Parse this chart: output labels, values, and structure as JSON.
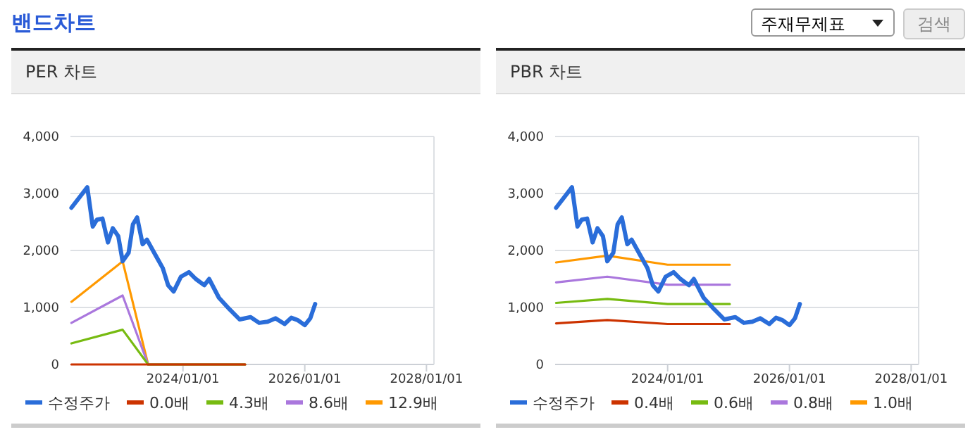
{
  "chart_data": [
    {
      "type": "line",
      "title": "PER 차트",
      "annotations": [
        "밴드차트",
        "주재무제표",
        "검색"
      ],
      "xlim": [
        "2022-02-25",
        "2028-02-15"
      ],
      "xticks": [
        {
          "value": "2024-01-01",
          "label": "2024/01/01"
        },
        {
          "value": "2026-01-01",
          "label": "2026/01/01"
        },
        {
          "value": "2028-01-01",
          "label": "2028/01/01"
        }
      ],
      "ylim": [
        0,
        4000
      ],
      "yticks": [
        0,
        {
          "value": 1000,
          "label": "1,000"
        },
        {
          "value": 2000,
          "label": "2,000"
        },
        {
          "value": 3000,
          "label": "3,000"
        },
        {
          "value": 4000,
          "label": "4,000"
        }
      ],
      "grid": "y",
      "legend": "bottom",
      "series": [
        {
          "name": "수정주가",
          "color": "#2a6dd9",
          "x": [
            "2022-03-03",
            "2022-06-06",
            "2022-07-09",
            "2022-08-03",
            "2022-09-05",
            "2022-10-08",
            "2022-11-06",
            "2022-12-09",
            "2023-01-04",
            "2023-02-09",
            "2023-03-07",
            "2023-04-01",
            "2023-05-04",
            "2023-05-30",
            "2023-07-20",
            "2023-09-02",
            "2023-10-04",
            "2023-11-06",
            "2023-12-20",
            "2024-02-06",
            "2024-03-18",
            "2024-05-08",
            "2024-06-06",
            "2024-08-04",
            "2024-10-09",
            "2024-12-06",
            "2025-02-10",
            "2025-04-02",
            "2025-05-23",
            "2025-07-09",
            "2025-09-02",
            "2025-10-12",
            "2025-11-18",
            "2026-01-01",
            "2026-02-03",
            "2026-03-04"
          ],
          "values": [
            2750,
            3110,
            2420,
            2540,
            2560,
            2140,
            2390,
            2250,
            1810,
            1960,
            2460,
            2580,
            2110,
            2190,
            1920,
            1690,
            1390,
            1280,
            1540,
            1620,
            1500,
            1390,
            1500,
            1170,
            960,
            790,
            830,
            730,
            750,
            810,
            710,
            820,
            780,
            690,
            810,
            1060
          ]
        },
        {
          "name": "0.0배",
          "color": "#cc3300",
          "x": [
            "2022-03-03",
            "2025-01-08"
          ],
          "values": [
            0,
            0
          ]
        },
        {
          "name": "4.3배",
          "color": "#77bb11",
          "x": [
            "2022-03-03",
            "2023-01-04",
            "2023-06-06",
            "2025-01-08"
          ],
          "values": [
            370,
            610,
            0,
            0
          ]
        },
        {
          "name": "8.6배",
          "color": "#aa77dd",
          "x": [
            "2022-03-03",
            "2023-01-04",
            "2023-06-06",
            "2025-01-08"
          ],
          "values": [
            730,
            1210,
            0,
            0
          ]
        },
        {
          "name": "12.9배",
          "color": "#ff9900",
          "x": [
            "2022-03-03",
            "2023-01-04",
            "2023-06-06",
            "2025-01-08"
          ],
          "values": [
            1100,
            1810,
            0,
            0
          ]
        }
      ]
    },
    {
      "type": "line",
      "title": "PBR 차트",
      "xlim": [
        "2022-02-25",
        "2028-02-15"
      ],
      "xticks": [
        {
          "value": "2024-01-01",
          "label": "2024/01/01"
        },
        {
          "value": "2026-01-01",
          "label": "2026/01/01"
        },
        {
          "value": "2028-01-01",
          "label": "2028/01/01"
        }
      ],
      "ylim": [
        0,
        4000
      ],
      "yticks": [
        0,
        {
          "value": 1000,
          "label": "1,000"
        },
        {
          "value": 2000,
          "label": "2,000"
        },
        {
          "value": 3000,
          "label": "3,000"
        },
        {
          "value": 4000,
          "label": "4,000"
        }
      ],
      "grid": "y",
      "legend": "bottom",
      "series": [
        {
          "name": "수정주가",
          "color": "#2a6dd9",
          "x": [
            "2022-03-03",
            "2022-06-06",
            "2022-07-09",
            "2022-08-03",
            "2022-09-05",
            "2022-10-08",
            "2022-11-06",
            "2022-12-09",
            "2023-01-04",
            "2023-02-09",
            "2023-03-07",
            "2023-04-01",
            "2023-05-04",
            "2023-05-30",
            "2023-07-20",
            "2023-09-02",
            "2023-10-04",
            "2023-11-06",
            "2023-12-20",
            "2024-02-06",
            "2024-03-18",
            "2024-05-08",
            "2024-06-06",
            "2024-08-04",
            "2024-10-09",
            "2024-12-06",
            "2025-02-10",
            "2025-04-02",
            "2025-05-23",
            "2025-07-09",
            "2025-09-02",
            "2025-10-12",
            "2025-11-18",
            "2026-01-01",
            "2026-02-03",
            "2026-03-04"
          ],
          "values": [
            2750,
            3110,
            2420,
            2540,
            2560,
            2140,
            2390,
            2250,
            1810,
            1960,
            2460,
            2580,
            2110,
            2190,
            1920,
            1690,
            1390,
            1280,
            1540,
            1620,
            1500,
            1390,
            1500,
            1170,
            960,
            790,
            830,
            730,
            750,
            810,
            710,
            820,
            780,
            690,
            810,
            1060
          ]
        },
        {
          "name": "0.4배",
          "color": "#cc3300",
          "x": [
            "2022-03-03",
            "2023-01-04",
            "2024-01-01",
            "2025-01-08"
          ],
          "values": [
            720,
            780,
            710,
            710
          ]
        },
        {
          "name": "0.6배",
          "color": "#77bb11",
          "x": [
            "2022-03-03",
            "2023-01-04",
            "2024-01-01",
            "2025-01-08"
          ],
          "values": [
            1080,
            1150,
            1060,
            1060
          ]
        },
        {
          "name": "0.8배",
          "color": "#aa77dd",
          "x": [
            "2022-03-03",
            "2023-01-04",
            "2024-01-01",
            "2025-01-08"
          ],
          "values": [
            1440,
            1540,
            1400,
            1400
          ]
        },
        {
          "name": "1.0배",
          "color": "#ff9900",
          "x": [
            "2022-03-03",
            "2023-01-04",
            "2024-01-01",
            "2025-01-08"
          ],
          "values": [
            1790,
            1910,
            1750,
            1750
          ]
        }
      ]
    }
  ]
}
